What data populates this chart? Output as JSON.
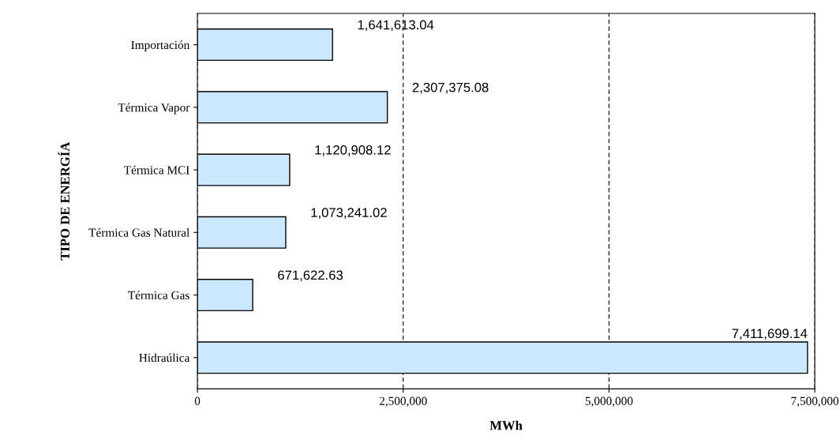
{
  "chart_data": {
    "type": "bar",
    "orientation": "horizontal",
    "xlabel": "MWh",
    "ylabel": "TIPO DE ENERGÍA",
    "categories": [
      "Importación",
      "Térmica Vapor",
      "Térmica MCI",
      "Térmica Gas Natural",
      "Térmica Gas",
      "Hidraúlica"
    ],
    "values": [
      1641613.04,
      2307375.08,
      1120908.12,
      1073241.02,
      671622.63,
      7411699.14
    ],
    "value_labels": [
      "1,641,613.04",
      "2,307,375.08",
      "1,120,908.12",
      "1,073,241.02",
      "671,622.63",
      "7,411,699.14"
    ],
    "color": "#cce8ff",
    "xlim": [
      0,
      7500000
    ],
    "xticks": [
      0,
      {
        "value": 2500000,
        "label": "2,500,000"
      },
      {
        "value": 5000000,
        "label": "5,000,000"
      },
      {
        "value": 7500000,
        "label": "7,500,000"
      }
    ],
    "grid": "x"
  }
}
